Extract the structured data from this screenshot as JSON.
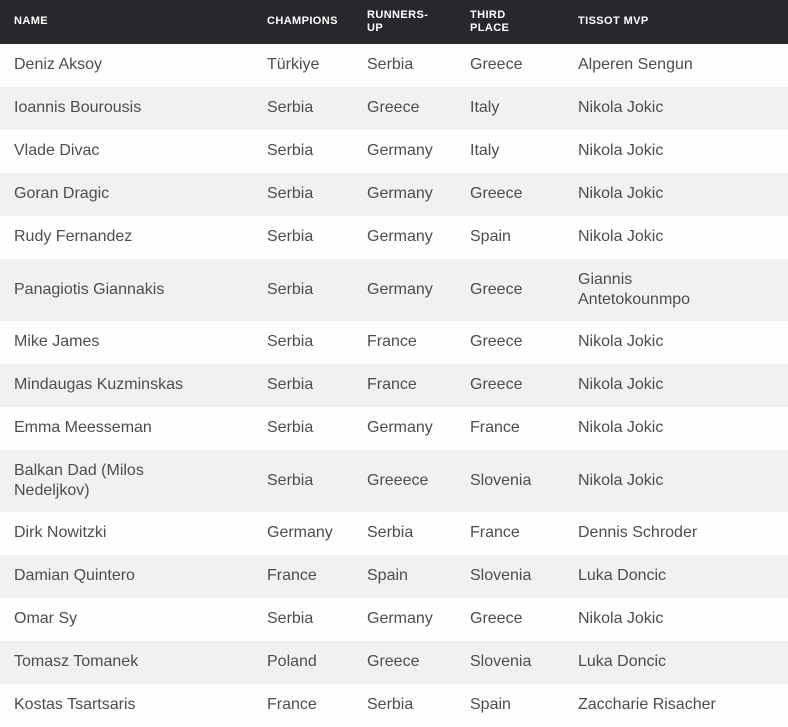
{
  "colors": {
    "header_bg": "#26282c",
    "header_text": "#ffffff",
    "row_bg": "#fefefe",
    "row_alt_bg": "#f1f1f2",
    "body_text": "#4b4d51"
  },
  "table": {
    "columns": [
      {
        "id": "name",
        "label": "NAME"
      },
      {
        "id": "champions",
        "label": "CHAMPIONS"
      },
      {
        "id": "runners_up",
        "label": "RUNNERS-UP"
      },
      {
        "id": "third_place",
        "label": "THIRD PLACE"
      },
      {
        "id": "tissot_mvp",
        "label": "TISSOT MVP"
      }
    ],
    "rows": [
      {
        "name": "Deniz Aksoy",
        "champions": "Türkiye",
        "runners_up": "Serbia",
        "third_place": "Greece",
        "tissot_mvp": "Alperen Sengun"
      },
      {
        "name": "Ioannis Bourousis",
        "champions": "Serbia",
        "runners_up": "Greece",
        "third_place": "Italy",
        "tissot_mvp": "Nikola Jokic"
      },
      {
        "name": "Vlade Divac",
        "champions": "Serbia",
        "runners_up": "Germany",
        "third_place": "Italy",
        "tissot_mvp": "Nikola Jokic"
      },
      {
        "name": "Goran Dragic",
        "champions": "Serbia",
        "runners_up": "Germany",
        "third_place": "Greece",
        "tissot_mvp": "Nikola Jokic"
      },
      {
        "name": "Rudy Fernandez",
        "champions": "Serbia",
        "runners_up": "Germany",
        "third_place": "Spain",
        "tissot_mvp": "Nikola Jokic"
      },
      {
        "name": "Panagiotis Giannakis",
        "champions": "Serbia",
        "runners_up": "Germany",
        "third_place": "Greece",
        "tissot_mvp": "Giannis Antetokounmpo"
      },
      {
        "name": "Mike James",
        "champions": "Serbia",
        "runners_up": "France",
        "third_place": "Greece",
        "tissot_mvp": "Nikola Jokic"
      },
      {
        "name": "Mindaugas Kuzminskas",
        "champions": "Serbia",
        "runners_up": "France",
        "third_place": "Greece",
        "tissot_mvp": "Nikola Jokic"
      },
      {
        "name": "Emma Meesseman",
        "champions": "Serbia",
        "runners_up": "Germany",
        "third_place": "France",
        "tissot_mvp": "Nikola Jokic"
      },
      {
        "name": "Balkan Dad (Milos Nedeljkov)",
        "champions": "Serbia",
        "runners_up": "Greeece",
        "third_place": "Slovenia",
        "tissot_mvp": "Nikola Jokic"
      },
      {
        "name": "Dirk Nowitzki",
        "champions": "Germany",
        "runners_up": "Serbia",
        "third_place": "France",
        "tissot_mvp": "Dennis Schroder"
      },
      {
        "name": "Damian Quintero",
        "champions": "France",
        "runners_up": "Spain",
        "third_place": "Slovenia",
        "tissot_mvp": "Luka Doncic"
      },
      {
        "name": "Omar Sy",
        "champions": "Serbia",
        "runners_up": "Germany",
        "third_place": "Greece",
        "tissot_mvp": "Nikola Jokic"
      },
      {
        "name": "Tomasz Tomanek",
        "champions": "Poland",
        "runners_up": "Greece",
        "third_place": "Slovenia",
        "tissot_mvp": "Luka Doncic"
      },
      {
        "name": "Kostas Tsartsaris",
        "champions": "France",
        "runners_up": "Serbia",
        "third_place": "Spain",
        "tissot_mvp": "Zaccharie Risacher"
      }
    ]
  }
}
